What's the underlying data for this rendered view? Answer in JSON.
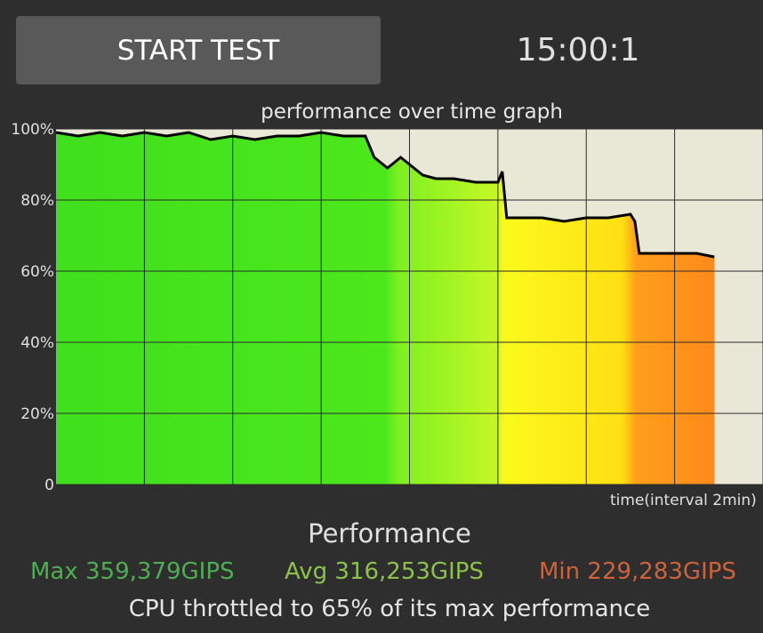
{
  "header": {
    "start_button_label": "START TEST",
    "timer": "15:00:1"
  },
  "colors": {
    "background": "#2e2e2e",
    "plot_background": "#e9e7d6",
    "max": "#4caf50",
    "avg": "#8bc34a",
    "min": "#d0623a",
    "line": "#000000",
    "grid": "#2a2a2a"
  },
  "chart_data": {
    "type": "area",
    "title": "performance over time graph",
    "xlabel": "time(interval 2min)",
    "ylabel": "",
    "ylim": [
      0,
      100
    ],
    "yticks": [
      "0",
      "20%",
      "40%",
      "60%",
      "80%",
      "100%"
    ],
    "xlim": [
      0,
      16
    ],
    "x_interval_minutes": 2,
    "grid": true,
    "series": [
      {
        "x": [
          0,
          0.5,
          1,
          1.5,
          2,
          2.5,
          3,
          3.5,
          4,
          4.5,
          5,
          5.5,
          6,
          6.5,
          7,
          7.2,
          7.5,
          7.8,
          8,
          8.3,
          8.6,
          9,
          9.5,
          10,
          10.1,
          10.2,
          10.5,
          11,
          11.5,
          12,
          12.5,
          13,
          13.1,
          13.2,
          13.5,
          14,
          14.5,
          14.9
        ],
        "values": [
          99,
          98,
          99,
          98,
          99,
          98,
          99,
          97,
          98,
          97,
          98,
          98,
          99,
          98,
          98,
          92,
          89,
          92,
          90,
          87,
          86,
          86,
          85,
          85,
          88,
          75,
          75,
          75,
          74,
          75,
          75,
          76,
          74,
          65,
          65,
          65,
          65,
          64
        ]
      }
    ]
  },
  "performance": {
    "label": "Performance",
    "max": "Max 359,379GIPS",
    "avg": "Avg 316,253GIPS",
    "min": "Min 229,283GIPS",
    "throttle_text": "CPU throttled to 65% of its max performance"
  }
}
